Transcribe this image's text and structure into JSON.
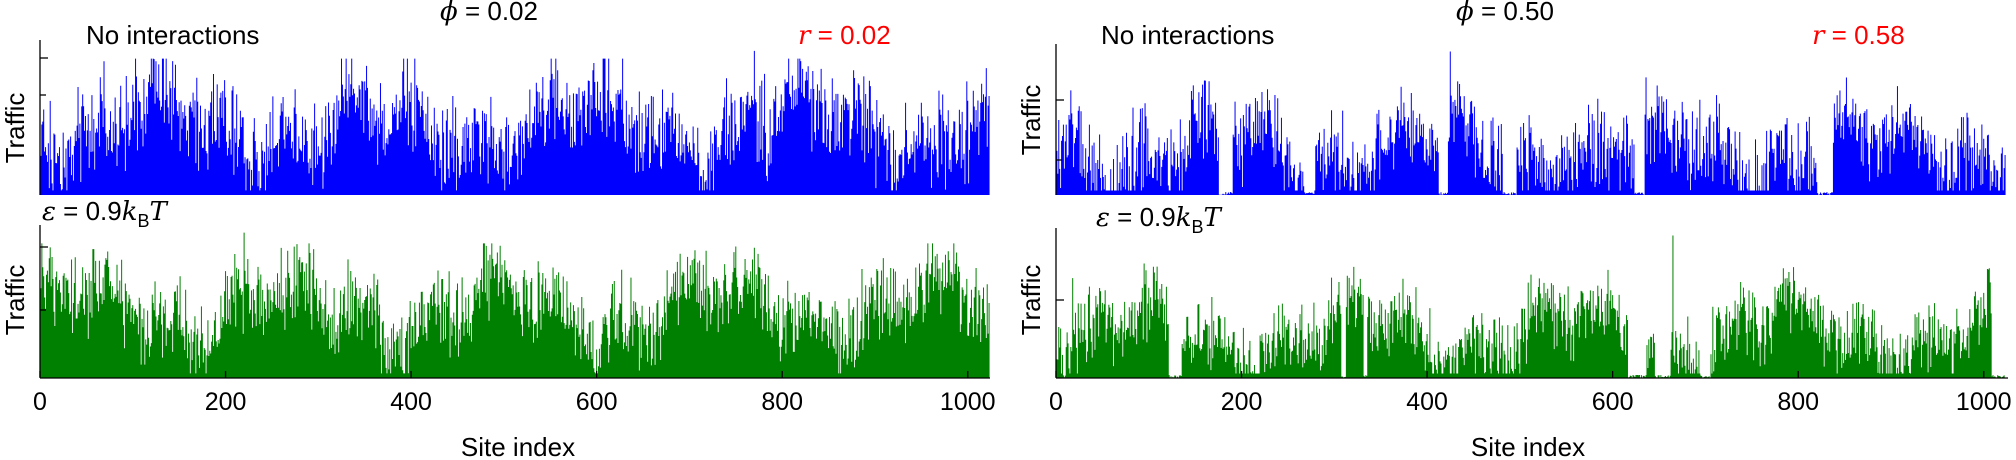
{
  "figure": {
    "x_axis_label": "Site index",
    "y_axis_label": "Traffic",
    "no_interactions_label": "No interactions",
    "epsilon_symbol": "ε",
    "epsilon_value": " = 0.9",
    "k_symbol": "k",
    "k_subscript": "B",
    "t_symbol": "T",
    "phi_symbol": "ϕ",
    "r_symbol": "r",
    "left_phi_value": " = 0.02",
    "left_r_value": " = 0.02",
    "right_phi_value": " = 0.50",
    "right_r_value": " = 0.58",
    "x_ticks": [
      "0",
      "200",
      "400",
      "600",
      "800",
      "1000"
    ]
  },
  "colors": {
    "no_interactions": "#0000ff",
    "interactions": "#008000",
    "r_label": "#ff0000"
  },
  "chart_data": [
    {
      "type": "bar",
      "title": "ϕ = 0.02, No interactions",
      "annotation": "r = 0.02",
      "xlabel": "Site index",
      "ylabel": "Traffic",
      "xlim": [
        0,
        1024
      ],
      "ylim": [
        0,
        1.0
      ],
      "n_sites": 1024,
      "vacancy_fraction": 0.02,
      "traffic_profile": {
        "mean": 0.45,
        "spread": 0.25,
        "peak": 0.93,
        "peak_at": 770
      },
      "series": [
        {
          "name": "No interactions",
          "color": "#0000ff"
        }
      ]
    },
    {
      "type": "bar",
      "title": "ϕ = 0.02, ε = 0.9 kBT",
      "xlabel": "Site index",
      "ylabel": "Traffic",
      "xlim": [
        0,
        1024
      ],
      "ylim": [
        0,
        1.0
      ],
      "n_sites": 1024,
      "vacancy_fraction": 0.02,
      "traffic_profile": {
        "mean": 0.45,
        "spread": 0.22,
        "peak": 0.95,
        "peak_at": 220
      },
      "series": [
        {
          "name": "ε = 0.9 kBT",
          "color": "#008000"
        }
      ]
    },
    {
      "type": "bar",
      "title": "ϕ = 0.50, No interactions",
      "annotation": "r = 0.58",
      "xlabel": "Site index",
      "ylabel": "Traffic",
      "xlim": [
        0,
        1024
      ],
      "ylim": [
        0,
        1.0
      ],
      "n_sites": 1024,
      "vacancy_fraction": 0.5,
      "traffic_profile": {
        "mean": 0.3,
        "spread": 0.25,
        "peak": 0.95,
        "peak_at": 425
      },
      "series": [
        {
          "name": "No interactions",
          "color": "#0000ff"
        }
      ]
    },
    {
      "type": "bar",
      "title": "ϕ = 0.50, ε = 0.9 kBT",
      "xlabel": "Site index",
      "ylabel": "Traffic",
      "xlim": [
        0,
        1024
      ],
      "ylim": [
        0,
        1.0
      ],
      "n_sites": 1024,
      "vacancy_fraction": 0.5,
      "traffic_profile": {
        "mean": 0.3,
        "spread": 0.2,
        "peak": 0.95,
        "peak_at": 665
      },
      "series": [
        {
          "name": "ε = 0.9 kBT",
          "color": "#008000"
        }
      ]
    }
  ]
}
